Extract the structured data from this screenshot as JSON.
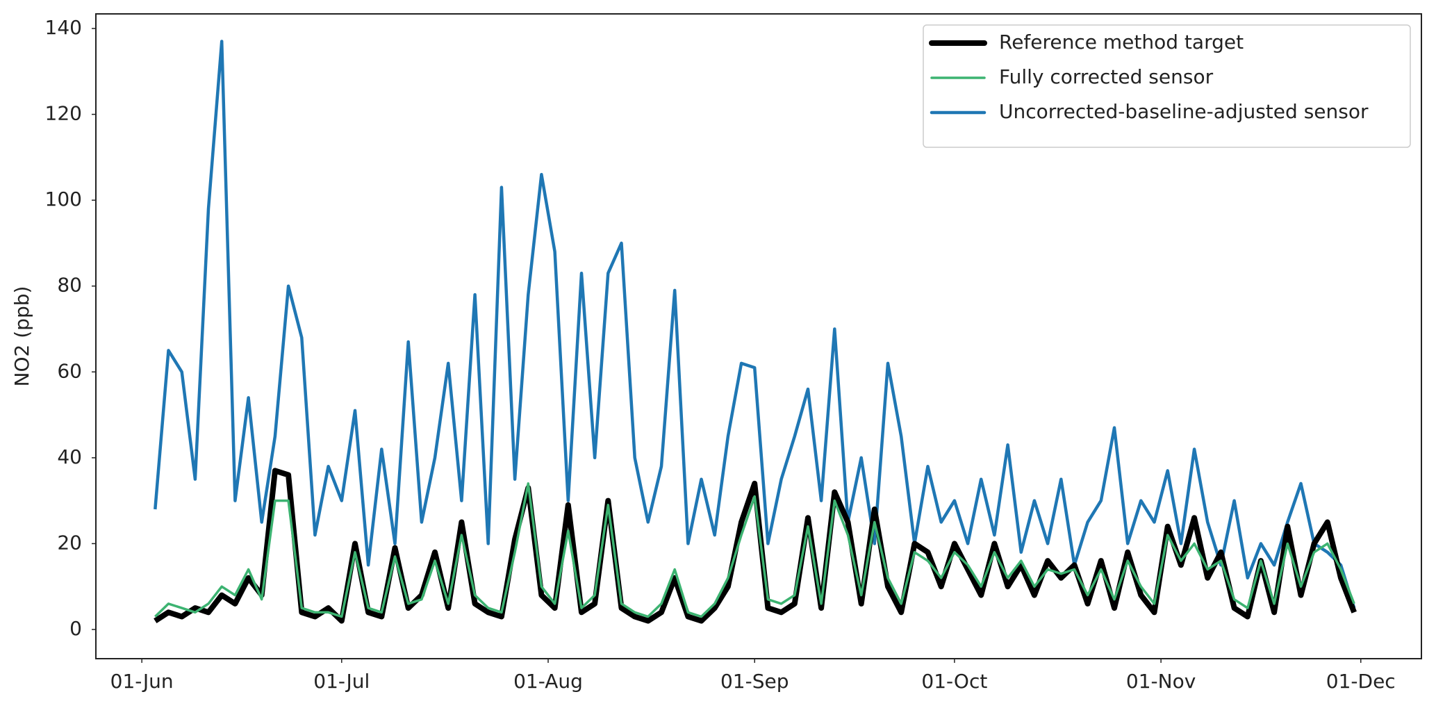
{
  "chart_data": {
    "type": "line",
    "y_label": "NO2 (ppb)",
    "xlim": [
      -6.9,
      192.1
    ],
    "ylim": [
      -6.8,
      143.4
    ],
    "xticks": [
      {
        "value": 0,
        "label": "01-Jun"
      },
      {
        "value": 30,
        "label": "01-Jul"
      },
      {
        "value": 61,
        "label": "01-Aug"
      },
      {
        "value": 92,
        "label": "01-Sep"
      },
      {
        "value": 122,
        "label": "01-Oct"
      },
      {
        "value": 153,
        "label": "01-Nov"
      },
      {
        "value": 183,
        "label": "01-Dec"
      }
    ],
    "yticks": [
      0,
      20,
      40,
      60,
      80,
      100,
      120,
      140
    ],
    "grid": false,
    "legend": "upper right",
    "x": [
      2,
      4,
      6,
      8,
      10,
      12,
      14,
      16,
      18,
      20,
      22,
      24,
      26,
      28,
      30,
      32,
      34,
      36,
      38,
      40,
      42,
      44,
      46,
      48,
      50,
      52,
      54,
      56,
      58,
      60,
      62,
      64,
      66,
      68,
      70,
      72,
      74,
      76,
      78,
      80,
      82,
      84,
      86,
      88,
      90,
      92,
      94,
      96,
      98,
      100,
      102,
      104,
      106,
      108,
      110,
      112,
      114,
      116,
      118,
      120,
      122,
      124,
      126,
      128,
      130,
      132,
      134,
      136,
      138,
      140,
      142,
      144,
      146,
      148,
      150,
      152,
      154,
      156,
      158,
      160,
      162,
      164,
      166,
      168,
      170,
      172,
      174,
      176,
      178,
      180,
      182
    ],
    "series": [
      {
        "name": "Reference method target",
        "color": "#000000",
        "values": [
          2,
          4,
          3,
          5,
          4,
          8,
          6,
          12,
          8,
          37,
          36,
          4,
          3,
          5,
          2,
          20,
          4,
          3,
          19,
          5,
          8,
          18,
          5,
          25,
          6,
          4,
          3,
          21,
          33,
          8,
          5,
          29,
          4,
          6,
          30,
          5,
          3,
          2,
          4,
          12,
          3,
          2,
          5,
          10,
          25,
          34,
          5,
          4,
          6,
          26,
          5,
          32,
          25,
          6,
          28,
          10,
          4,
          20,
          18,
          10,
          20,
          14,
          8,
          20,
          10,
          15,
          8,
          16,
          12,
          15,
          6,
          16,
          5,
          18,
          8,
          4,
          24,
          15,
          26,
          12,
          18,
          5,
          3,
          16,
          4,
          24,
          8,
          20,
          25,
          12,
          4
        ]
      },
      {
        "name": "Fully corrected sensor",
        "color": "#3cb371",
        "values": [
          3,
          6,
          5,
          4,
          6,
          10,
          8,
          14,
          7,
          30,
          30,
          5,
          4,
          4,
          3,
          18,
          5,
          4,
          17,
          6,
          7,
          16,
          6,
          22,
          8,
          5,
          4,
          18,
          34,
          10,
          6,
          23,
          5,
          8,
          29,
          6,
          4,
          3,
          6,
          14,
          4,
          3,
          6,
          12,
          22,
          31,
          7,
          6,
          8,
          24,
          6,
          30,
          22,
          8,
          25,
          12,
          6,
          18,
          16,
          12,
          18,
          15,
          10,
          18,
          12,
          16,
          10,
          14,
          13,
          14,
          8,
          14,
          7,
          16,
          10,
          6,
          22,
          16,
          20,
          14,
          16,
          7,
          5,
          16,
          6,
          20,
          10,
          18,
          20,
          14,
          6
        ]
      },
      {
        "name": "Uncorrected-baseline-adjusted sensor",
        "color": "#1f77b4",
        "values": [
          28,
          65,
          60,
          35,
          98,
          137,
          30,
          54,
          25,
          45,
          80,
          68,
          22,
          38,
          30,
          51,
          15,
          42,
          20,
          67,
          25,
          40,
          62,
          30,
          78,
          20,
          103,
          35,
          78,
          106,
          88,
          30,
          83,
          40,
          83,
          90,
          40,
          25,
          38,
          79,
          20,
          35,
          22,
          45,
          62,
          61,
          20,
          35,
          45,
          56,
          30,
          70,
          25,
          40,
          20,
          62,
          45,
          20,
          38,
          25,
          30,
          20,
          35,
          22,
          43,
          18,
          30,
          20,
          35,
          15,
          25,
          30,
          47,
          20,
          30,
          25,
          37,
          20,
          42,
          25,
          15,
          30,
          12,
          20,
          15,
          25,
          34,
          20,
          18,
          15,
          5
        ]
      }
    ]
  }
}
